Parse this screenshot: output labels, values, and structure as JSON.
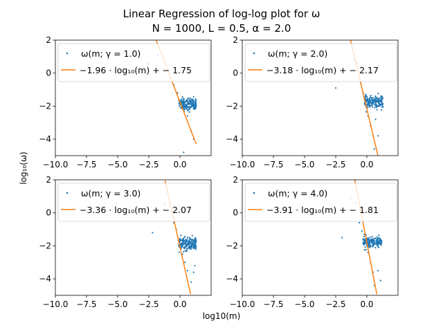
{
  "figure": {
    "title_line1": "Linear Regression of log-log plot for ω",
    "title_line2": "N = 1000, L = 0.5, α = 2.0",
    "xlabel": "log10(m)",
    "ylabel": "log₁₀(ω)"
  },
  "chart_data": [
    {
      "type": "scatter",
      "title": "",
      "xlim": [
        -10,
        2.5
      ],
      "ylim": [
        -5,
        2
      ],
      "xticks": [
        -10.0,
        -7.5,
        -5.0,
        -2.5,
        0.0
      ],
      "xtick_labels": [
        "−10.0",
        "−7.5",
        "−5.0",
        "−2.5",
        "0.0"
      ],
      "yticks": [
        -4,
        -2,
        0,
        2
      ],
      "ytick_labels": [
        "−4",
        "−2",
        "0",
        "2"
      ],
      "legend_position": "top-left",
      "series": [
        {
          "name": "ω(m; γ = 1.0)",
          "kind": "scatter",
          "color": "#1f77b4",
          "points": [
            [
              -2.6,
              0.6
            ],
            [
              -1.8,
              1.1
            ],
            [
              -1.2,
              0.6
            ],
            [
              -0.8,
              -0.3
            ],
            [
              -0.5,
              -0.7
            ],
            [
              -0.2,
              -1.2
            ],
            [
              0.2,
              -1.8
            ],
            [
              0.4,
              -2.2
            ],
            [
              0.6,
              -2.6
            ],
            [
              0.9,
              -3.5
            ],
            [
              1.1,
              -4.0
            ],
            [
              0.3,
              -4.8
            ],
            [
              0.8,
              -1.6
            ]
          ],
          "cluster": {
            "x_range": [
              -0.1,
              1.3
            ],
            "y_center": -1.9,
            "y_spread": 0.45,
            "count": 180
          }
        },
        {
          "name": "−1.96 · log₁₀(m) + − 1.75",
          "kind": "line",
          "color": "#ff7f0e",
          "slope": -1.96,
          "intercept": -1.75,
          "x_range": [
            -2.1,
            1.3
          ]
        }
      ]
    },
    {
      "type": "scatter",
      "title": "",
      "xlim": [
        -10,
        2.5
      ],
      "ylim": [
        -5,
        2
      ],
      "xticks": [
        -10.0,
        -7.5,
        -5.0,
        -2.5,
        0.0
      ],
      "xtick_labels": [
        "−10.0",
        "−7.5",
        "−5.0",
        "−2.5",
        "0.0"
      ],
      "yticks": [
        -4,
        -2,
        0,
        2
      ],
      "ytick_labels": [
        "−4",
        "−2",
        "0",
        "2"
      ],
      "legend_position": "top-left",
      "series": [
        {
          "name": "ω(m; γ = 2.0)",
          "kind": "scatter",
          "color": "#1f77b4",
          "points": [
            [
              -2.5,
              -0.9
            ],
            [
              -1.0,
              0.8
            ],
            [
              -0.8,
              0.6
            ],
            [
              -0.5,
              -0.6
            ],
            [
              -0.3,
              -1.2
            ],
            [
              -0.1,
              -1.3
            ],
            [
              0.1,
              -2.6
            ],
            [
              0.3,
              -3.2
            ],
            [
              0.5,
              -3.8
            ],
            [
              0.6,
              -4.6
            ],
            [
              0.9,
              -3.8
            ],
            [
              0.7,
              -2.8
            ]
          ],
          "cluster": {
            "x_range": [
              -0.2,
              1.3
            ],
            "y_center": -1.75,
            "y_spread": 0.4,
            "count": 180
          }
        },
        {
          "name": "−3.18 · log₁₀(m) + − 2.17",
          "kind": "line",
          "color": "#ff7f0e",
          "slope": -3.18,
          "intercept": -2.17,
          "x_range": [
            -1.5,
            0.9
          ]
        }
      ]
    },
    {
      "type": "scatter",
      "title": "",
      "xlim": [
        -10,
        2.5
      ],
      "ylim": [
        -5,
        2
      ],
      "xticks": [
        -10.0,
        -7.5,
        -5.0,
        -2.5,
        0.0
      ],
      "xtick_labels": [
        "−10.0",
        "−7.5",
        "−5.0",
        "−2.5",
        "0.0"
      ],
      "yticks": [
        -4,
        -2,
        0,
        2
      ],
      "ytick_labels": [
        "−4",
        "−2",
        "0",
        "2"
      ],
      "legend_position": "top-left",
      "series": [
        {
          "name": "ω(m; γ = 3.0)",
          "kind": "scatter",
          "color": "#1f77b4",
          "points": [
            [
              -2.2,
              -1.2
            ],
            [
              -1.2,
              0.5
            ],
            [
              -0.8,
              0.1
            ],
            [
              -0.5,
              -0.6
            ],
            [
              -0.3,
              -1.0
            ],
            [
              0.0,
              -1.6
            ],
            [
              0.2,
              -2.5
            ],
            [
              0.4,
              -3.0
            ],
            [
              0.6,
              -3.5
            ],
            [
              0.9,
              -4.2
            ],
            [
              1.1,
              -3.6
            ],
            [
              1.2,
              -3.2
            ]
          ],
          "cluster": {
            "x_range": [
              -0.1,
              1.3
            ],
            "y_center": -1.9,
            "y_spread": 0.45,
            "count": 180
          }
        },
        {
          "name": "−3.36 · log₁₀(m) + − 2.07",
          "kind": "line",
          "color": "#ff7f0e",
          "slope": -3.36,
          "intercept": -2.07,
          "x_range": [
            -1.2,
            0.85
          ]
        }
      ]
    },
    {
      "type": "scatter",
      "title": "",
      "xlim": [
        -10,
        2.5
      ],
      "ylim": [
        -5,
        2
      ],
      "xticks": [
        -10.0,
        -7.5,
        -5.0,
        -2.5,
        0.0
      ],
      "xtick_labels": [
        "−10.0",
        "−7.5",
        "−5.0",
        "−2.5",
        "0.0"
      ],
      "yticks": [
        -4,
        -2,
        0,
        2
      ],
      "ytick_labels": [
        "−4",
        "−2",
        "0",
        "2"
      ],
      "legend_position": "top-left",
      "series": [
        {
          "name": "ω(m; γ = 4.0)",
          "kind": "scatter",
          "color": "#1f77b4",
          "points": [
            [
              -2.0,
              -1.5
            ],
            [
              -1.3,
              0.9
            ],
            [
              -0.9,
              0.6
            ],
            [
              -0.6,
              -0.6
            ],
            [
              -0.4,
              -1.1
            ],
            [
              -0.2,
              -1.3
            ],
            [
              0.1,
              -2.4
            ],
            [
              0.3,
              -3.0
            ],
            [
              0.5,
              -3.6
            ],
            [
              0.6,
              -4.4
            ],
            [
              0.9,
              -3.5
            ],
            [
              1.1,
              -4.1
            ]
          ],
          "cluster": {
            "x_range": [
              -0.3,
              1.2
            ],
            "y_center": -1.75,
            "y_spread": 0.4,
            "count": 180
          }
        },
        {
          "name": "−3.91 · log₁₀(m) + − 1.81",
          "kind": "line",
          "color": "#ff7f0e",
          "slope": -3.91,
          "intercept": -1.81,
          "x_range": [
            -1.2,
            0.8
          ]
        }
      ]
    }
  ]
}
